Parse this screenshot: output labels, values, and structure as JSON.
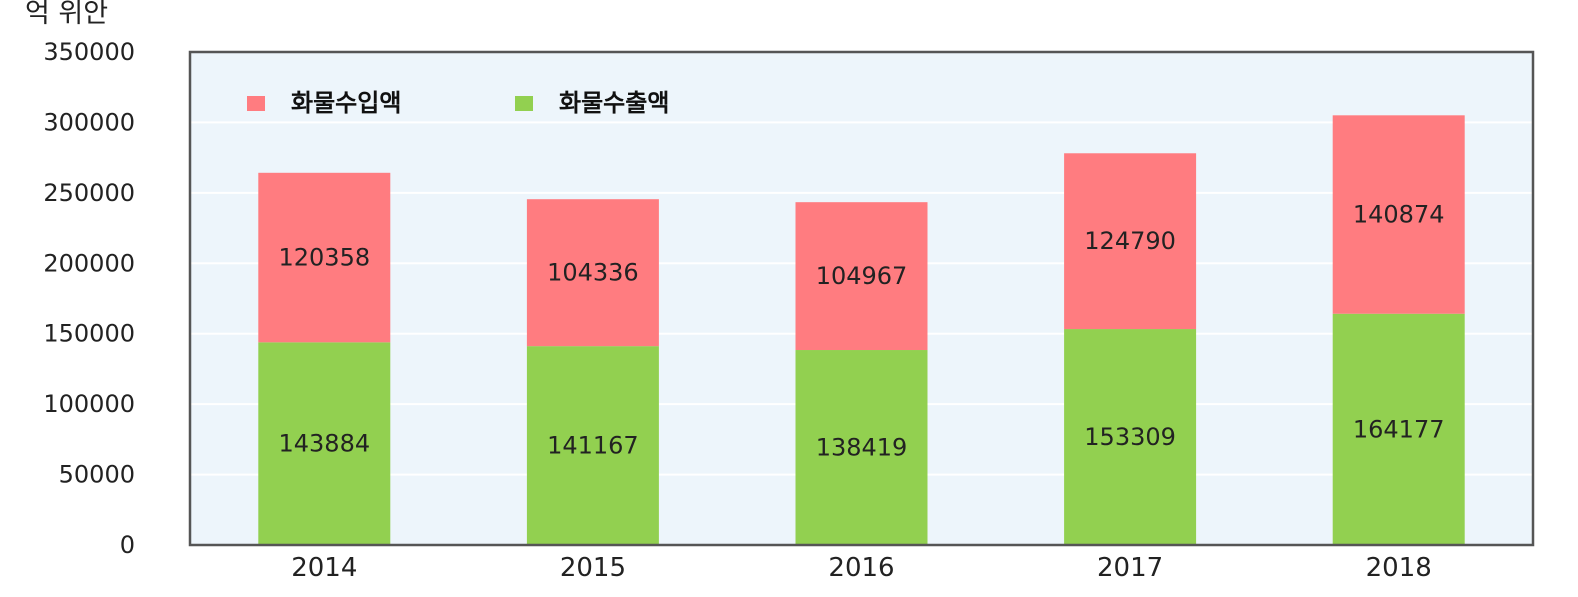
{
  "chart_data": {
    "type": "bar",
    "stacked": true,
    "unit_label": "억 위안",
    "categories": [
      "2014",
      "2015",
      "2016",
      "2017",
      "2018"
    ],
    "series": [
      {
        "name": "화물수출액",
        "color": "#92d050",
        "values": [
          143884,
          141167,
          138419,
          153309,
          164177
        ]
      },
      {
        "name": "화물수입액",
        "color": "#ff7c80",
        "values": [
          120358,
          104336,
          104967,
          124790,
          140874
        ]
      }
    ],
    "legend_order": [
      "화물수입액",
      "화물수출액"
    ],
    "legend_position": "top-left",
    "ylim": [
      0,
      350000
    ],
    "yticks": [
      "0",
      "50000",
      "100000",
      "150000",
      "200000",
      "250000",
      "300000",
      "350000"
    ],
    "grid": true,
    "plot_background": "#edf5fb"
  }
}
